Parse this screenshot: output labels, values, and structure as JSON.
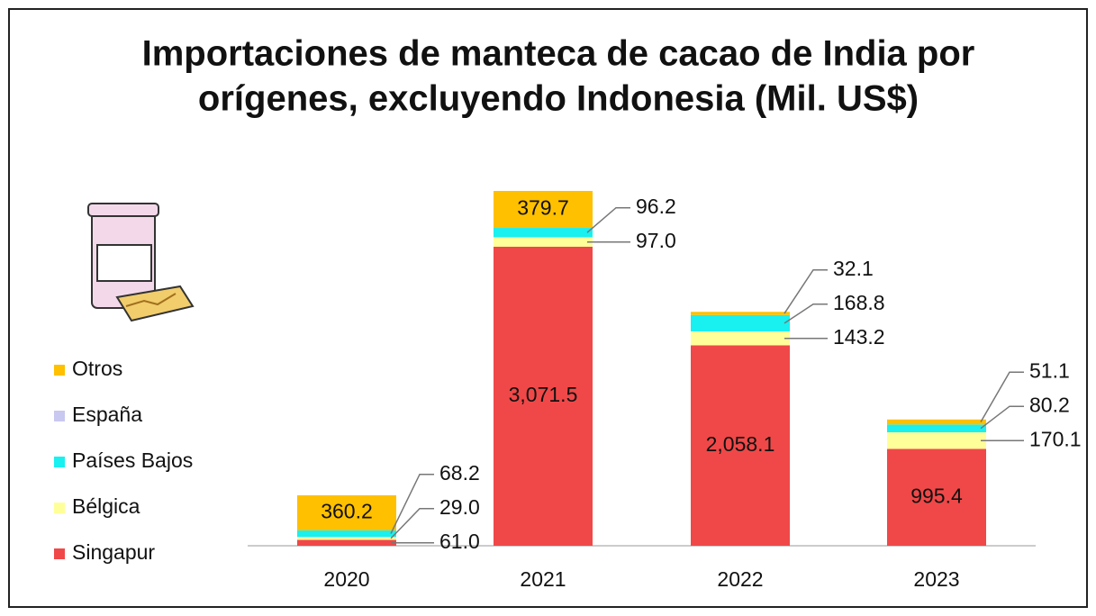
{
  "chart_data": {
    "type": "stacked-bar",
    "title": "Importaciones de manteca de cacao de India por",
    "title_line2": "orígenes, excluyendo Indonesia (Mil. US$)",
    "categories": [
      "2020",
      "2021",
      "2022",
      "2023"
    ],
    "series": [
      {
        "name": "Singapur",
        "color": "#f04848",
        "values": [
          61.0,
          3071.5,
          2058.1,
          995.4
        ],
        "value_labels": [
          "61.0",
          "3,071.5",
          "2,058.1",
          "995.4"
        ]
      },
      {
        "name": "Bélgica",
        "color": "#ffff99",
        "values": [
          29.0,
          97.0,
          143.2,
          170.1
        ],
        "value_labels": [
          "29.0",
          "97.0",
          "143.2",
          "170.1"
        ]
      },
      {
        "name": "Países Bajos",
        "color": "#19f0f0",
        "values": [
          68.2,
          96.2,
          168.8,
          80.2
        ],
        "value_labels": [
          "68.2",
          "96.2",
          "168.8",
          "80.2"
        ]
      },
      {
        "name": "España",
        "color": "#c8c8f0",
        "values": [
          0,
          0,
          0,
          0
        ],
        "value_labels": [
          null,
          null,
          null,
          null
        ]
      },
      {
        "name": "Otros",
        "color": "#ffc000",
        "values": [
          360.2,
          379.7,
          32.1,
          51.1
        ],
        "value_labels": [
          "360.2",
          "379.7",
          "32.1",
          "51.1"
        ]
      }
    ]
  }
}
